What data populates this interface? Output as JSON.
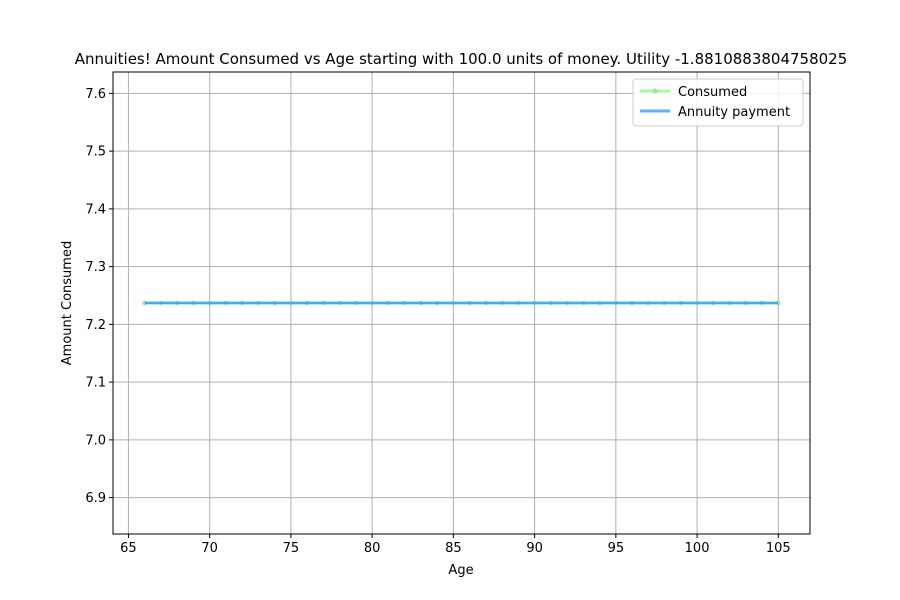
{
  "chart_data": {
    "type": "line",
    "title": "Annuities! Amount Consumed vs Age starting with 100.0 units of money. Utility -1.8810883804758025",
    "xlabel": "Age",
    "ylabel": "Amount Consumed",
    "xlim": [
      64.05,
      106.95
    ],
    "ylim": [
      6.837,
      7.637
    ],
    "xticks": [
      65,
      70,
      75,
      80,
      85,
      90,
      95,
      100,
      105
    ],
    "yticks": [
      6.9,
      7.0,
      7.1,
      7.2,
      7.3,
      7.4,
      7.5,
      7.6
    ],
    "xtick_labels": [
      "65",
      "70",
      "75",
      "80",
      "85",
      "90",
      "95",
      "100",
      "105"
    ],
    "ytick_labels": [
      "6.9",
      "7.0",
      "7.1",
      "7.2",
      "7.3",
      "7.4",
      "7.5",
      "7.6"
    ],
    "grid": true,
    "legend_position": "top-right",
    "x": [
      66,
      67,
      68,
      69,
      70,
      71,
      72,
      73,
      74,
      75,
      76,
      77,
      78,
      79,
      80,
      81,
      82,
      83,
      84,
      85,
      86,
      87,
      88,
      89,
      90,
      91,
      92,
      93,
      94,
      95,
      96,
      97,
      98,
      99,
      100,
      101,
      102,
      103,
      104,
      105
    ],
    "series": [
      {
        "name": "Consumed",
        "color": "#90ee90",
        "marker": "circle",
        "values": [
          7.237,
          7.237,
          7.237,
          7.237,
          7.237,
          7.237,
          7.237,
          7.237,
          7.237,
          7.237,
          7.237,
          7.237,
          7.237,
          7.237,
          7.237,
          7.237,
          7.237,
          7.237,
          7.237,
          7.237,
          7.237,
          7.237,
          7.237,
          7.237,
          7.237,
          7.237,
          7.237,
          7.237,
          7.237,
          7.237,
          7.237,
          7.237,
          7.237,
          7.237,
          7.237,
          7.237,
          7.237,
          7.237,
          7.237,
          7.237
        ]
      },
      {
        "name": "Annuity payment",
        "color": "#1e90ff",
        "marker": "none",
        "values": [
          7.237,
          7.237,
          7.237,
          7.237,
          7.237,
          7.237,
          7.237,
          7.237,
          7.237,
          7.237,
          7.237,
          7.237,
          7.237,
          7.237,
          7.237,
          7.237,
          7.237,
          7.237,
          7.237,
          7.237,
          7.237,
          7.237,
          7.237,
          7.237,
          7.237,
          7.237,
          7.237,
          7.237,
          7.237,
          7.237,
          7.237,
          7.237,
          7.237,
          7.237,
          7.237,
          7.237,
          7.237,
          7.237,
          7.237,
          7.237
        ]
      }
    ]
  }
}
